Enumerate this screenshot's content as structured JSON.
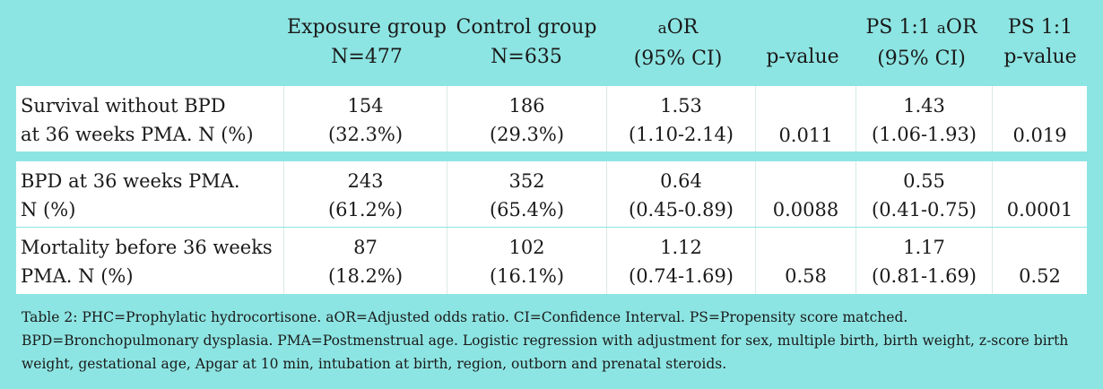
{
  "headers": {
    "exposure_l1": "Exposure group",
    "exposure_l2": "N=477",
    "control_l1": "Control group",
    "control_l2": "N=635",
    "aor_prefix": "a",
    "aor_l1": "OR",
    "aor_l2": "(95% CI)",
    "pvalue": "p-value",
    "ps_aor_prefix": "PS 1:1 ",
    "ps_aor_a": "a",
    "ps_aor_l1": "OR",
    "ps_aor_l2": "(95% CI)",
    "ps_p_l1": "PS 1:1",
    "ps_p_l2": "p-value"
  },
  "rows": [
    {
      "label_l1": "Survival without BPD",
      "label_l2": "at 36 weeks PMA. N (%)",
      "exp_n": "154",
      "exp_pct": "(32.3%)",
      "ctl_n": "186",
      "ctl_pct": "(29.3%)",
      "aor": "1.53",
      "aor_ci": "(1.10-2.14)",
      "p": "0.011",
      "ps_aor": "1.43",
      "ps_aor_ci": "(1.06-1.93)",
      "ps_p": "0.019"
    },
    {
      "label_l1": "BPD at 36 weeks PMA.",
      "label_l2": "N (%)",
      "exp_n": "243",
      "exp_pct": "(61.2%)",
      "ctl_n": "352",
      "ctl_pct": "(65.4%)",
      "aor": "0.64",
      "aor_ci": "(0.45-0.89)",
      "p": "0.0088",
      "ps_aor": "0.55",
      "ps_aor_ci": "(0.41-0.75)",
      "ps_p": "0.0001"
    },
    {
      "label_l1": "Mortality before 36 weeks",
      "label_l2": "PMA. N (%)",
      "exp_n": "87",
      "exp_pct": "(18.2%)",
      "ctl_n": "102",
      "ctl_pct": "(16.1%)",
      "aor": "1.12",
      "aor_ci": "(0.74-1.69)",
      "p": "0.58",
      "ps_aor": "1.17",
      "ps_aor_ci": "(0.81-1.69)",
      "ps_p": "0.52"
    }
  ],
  "caption": {
    "line1": "Table 2: PHC=Prophylatic hydrocortisone. aOR=Adjusted odds ratio. CI=Confidence Interval. PS=Propensity score matched.",
    "line2": "BPD=Bronchopulmonary dysplasia. PMA=Postmenstrual age. Logistic regression with adjustment for sex, multiple birth, birth weight, z-score birth",
    "line3": "weight, gestational age, Apgar at 10 min, intubation at birth, region, outborn and prenatal steroids."
  },
  "colors": {
    "background": "#8de5e3",
    "row_background": "#ffffff"
  }
}
